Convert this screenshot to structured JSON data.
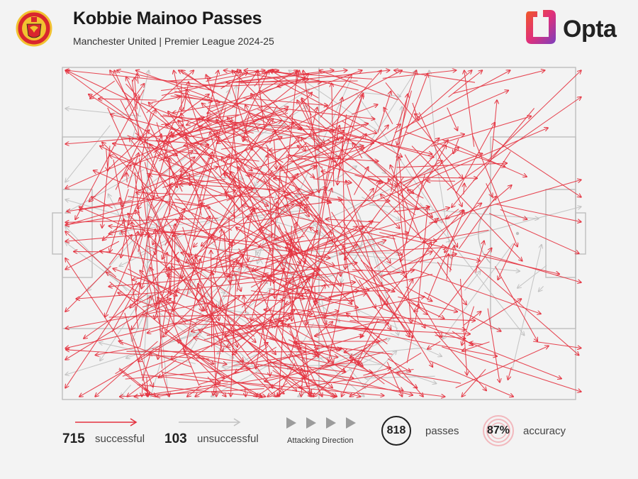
{
  "header": {
    "title": "Kobbie Mainoo Passes",
    "subtitle": "Manchester United | Premier League 2024-25",
    "brand": "Opta",
    "crest_icon": "manchester-united-crest-icon"
  },
  "colors": {
    "successful": "#e4323f",
    "unsuccessful": "#c2c2c2",
    "pitch_lines": "#bdbdbd",
    "background": "#f3f3f3",
    "brand_gradient": [
      "#f15a24",
      "#e0307a",
      "#7b3fbf"
    ]
  },
  "legend": {
    "successful_count": "715",
    "successful_label": "successful",
    "unsuccessful_count": "103",
    "unsuccessful_label": "unsuccessful",
    "direction_label": "Attacking Direction",
    "passes_count": "818",
    "passes_label": "passes",
    "accuracy_value": "87%",
    "accuracy_label": "accuracy"
  },
  "chart_data": {
    "type": "pass_map",
    "direction": "left-to-right",
    "totals": {
      "successful": 715,
      "unsuccessful": 103,
      "passes": 818,
      "accuracy_pct": 87
    },
    "series": [
      {
        "name": "successful",
        "count": 715,
        "color": "#e4323f"
      },
      {
        "name": "unsuccessful",
        "count": 103,
        "color": "#c2c2c2"
      }
    ]
  }
}
